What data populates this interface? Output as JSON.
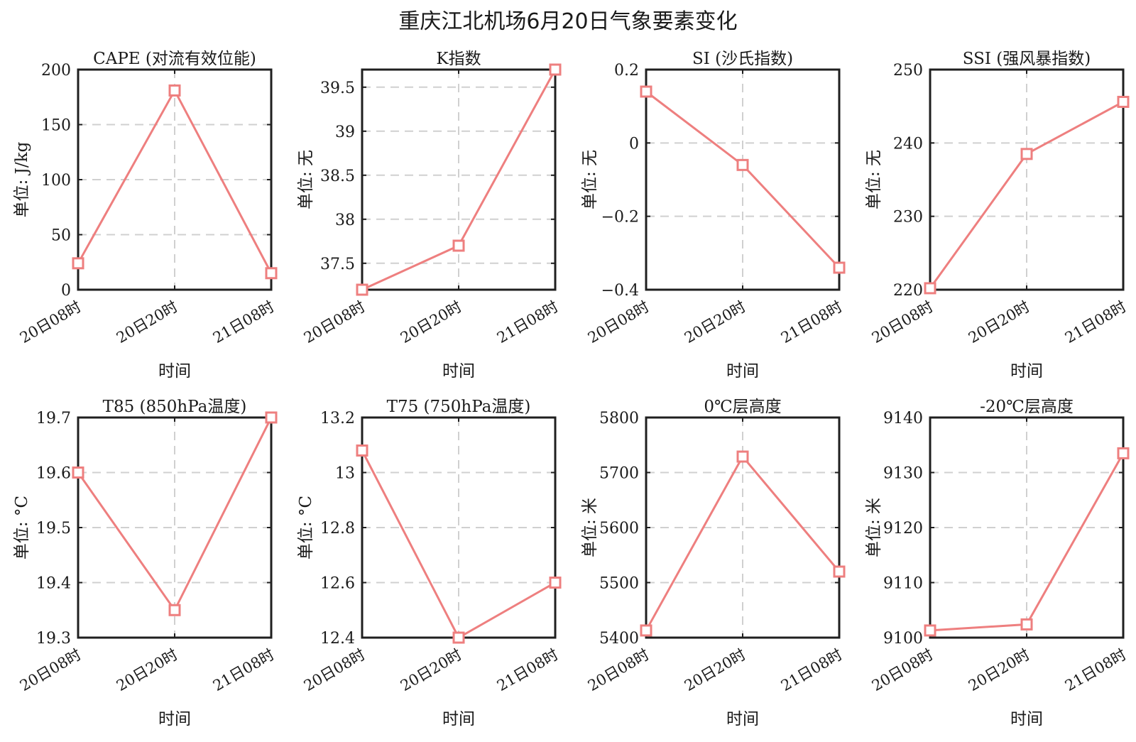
{
  "figure": {
    "title": "重庆江北机场6月20日气象要素变化"
  },
  "colors": {
    "series": "#ee7f7f",
    "axis": "#1f1f1f",
    "grid": "#d0d0d0"
  },
  "chart_data": [
    {
      "type": "line",
      "title": "CAPE (对流有效位能)",
      "xlabel": "时间",
      "ylabel": "单位: J/kg",
      "categories": [
        "20日08时",
        "20日20时",
        "21日08时"
      ],
      "values": [
        24,
        181,
        15
      ],
      "ylim": [
        0,
        200
      ],
      "yticks": [
        "0",
        "50",
        "100",
        "150",
        "200"
      ],
      "ytick_values": [
        0,
        50,
        100,
        150,
        200
      ],
      "grid": true
    },
    {
      "type": "line",
      "title": "K指数",
      "xlabel": "时间",
      "ylabel": "单位: 无",
      "categories": [
        "20日08时",
        "20日20时",
        "21日08时"
      ],
      "values": [
        37.2,
        37.7,
        39.7
      ],
      "ylim": [
        37.2,
        39.7
      ],
      "yticks": [
        "37.5",
        "38",
        "38.5",
        "39",
        "39.5"
      ],
      "ytick_values": [
        37.5,
        38,
        38.5,
        39,
        39.5
      ],
      "grid": true
    },
    {
      "type": "line",
      "title": "SI (沙氏指数)",
      "xlabel": "时间",
      "ylabel": "单位: 无",
      "categories": [
        "20日08时",
        "20日20时",
        "21日08时"
      ],
      "values": [
        0.14,
        -0.06,
        -0.34
      ],
      "ylim": [
        -0.4,
        0.2
      ],
      "yticks": [
        "−0.4",
        "−0.2",
        "0",
        "0.2"
      ],
      "ytick_values": [
        -0.4,
        -0.2,
        0,
        0.2
      ],
      "grid": true
    },
    {
      "type": "line",
      "title": "SSI (强风暴指数)",
      "xlabel": "时间",
      "ylabel": "单位: 无",
      "categories": [
        "20日08时",
        "20日20时",
        "21日08时"
      ],
      "values": [
        220.2,
        238.5,
        245.6
      ],
      "ylim": [
        220,
        250
      ],
      "yticks": [
        "220",
        "230",
        "240",
        "250"
      ],
      "ytick_values": [
        220,
        230,
        240,
        250
      ],
      "grid": true
    },
    {
      "type": "line",
      "title": "T85 (850hPa温度)",
      "xlabel": "时间",
      "ylabel": "单位: °C",
      "categories": [
        "20日08时",
        "20日20时",
        "21日08时"
      ],
      "values": [
        19.6,
        19.35,
        19.7
      ],
      "ylim": [
        19.3,
        19.7
      ],
      "yticks": [
        "19.3",
        "19.4",
        "19.5",
        "19.6",
        "19.7"
      ],
      "ytick_values": [
        19.3,
        19.4,
        19.5,
        19.6,
        19.7
      ],
      "grid": true
    },
    {
      "type": "line",
      "title": "T75 (750hPa温度)",
      "xlabel": "时间",
      "ylabel": "单位: °C",
      "categories": [
        "20日08时",
        "20日20时",
        "21日08时"
      ],
      "values": [
        13.08,
        12.4,
        12.6
      ],
      "ylim": [
        12.4,
        13.2
      ],
      "yticks": [
        "12.4",
        "12.6",
        "12.8",
        "13",
        "13.2"
      ],
      "ytick_values": [
        12.4,
        12.6,
        12.8,
        13,
        13.2
      ],
      "grid": true
    },
    {
      "type": "line",
      "title": "0℃层高度",
      "xlabel": "时间",
      "ylabel": "单位: 米",
      "categories": [
        "20日08时",
        "20日20时",
        "21日08时"
      ],
      "values": [
        5413,
        5729,
        5520
      ],
      "ylim": [
        5400,
        5800
      ],
      "yticks": [
        "5400",
        "5500",
        "5600",
        "5700",
        "5800"
      ],
      "ytick_values": [
        5400,
        5500,
        5600,
        5700,
        5800
      ],
      "grid": true
    },
    {
      "type": "line",
      "title": "-20℃层高度",
      "xlabel": "时间",
      "ylabel": "单位: 米",
      "categories": [
        "20日08时",
        "20日20时",
        "21日08时"
      ],
      "values": [
        9101.3,
        9102.4,
        9133.5
      ],
      "ylim": [
        9100,
        9140
      ],
      "yticks": [
        "9100",
        "9110",
        "9120",
        "9130",
        "9140"
      ],
      "ytick_values": [
        9100,
        9110,
        9120,
        9130,
        9140
      ],
      "grid": true
    }
  ]
}
